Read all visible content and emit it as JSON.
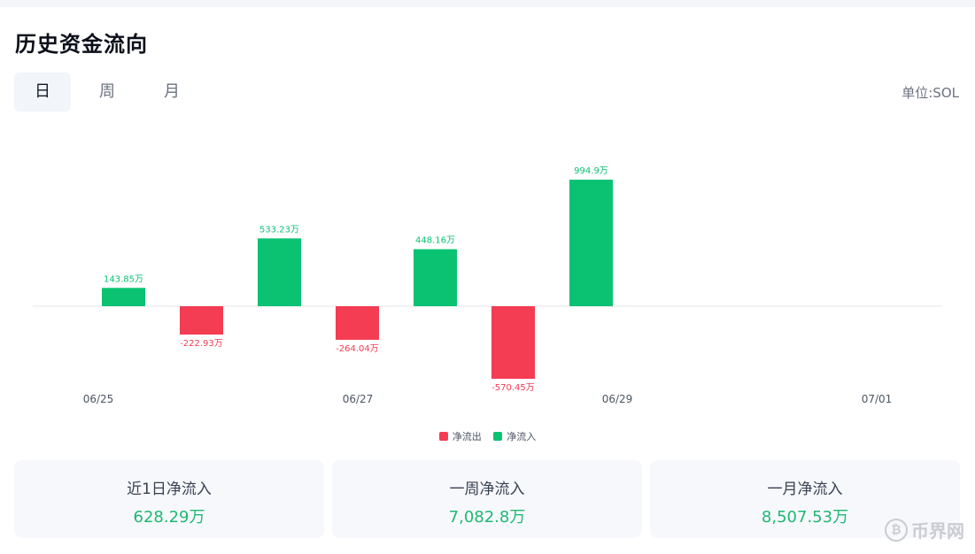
{
  "header": {
    "title": "历史资金流向",
    "unit": "单位:SOL"
  },
  "tabs": [
    {
      "label": "日",
      "active": true
    },
    {
      "label": "周",
      "active": false
    },
    {
      "label": "月",
      "active": false
    }
  ],
  "colors": {
    "inflow": "#0bc273",
    "outflow": "#f43c53",
    "accent_green": "#1fb872"
  },
  "chart_data": {
    "type": "bar",
    "unit": "万",
    "x_tick_labels": [
      "06/25",
      "06/27",
      "06/29",
      "07/01"
    ],
    "bars": [
      {
        "series": "净流入",
        "value": 143.85,
        "label": "143.85万"
      },
      {
        "series": "净流出",
        "value": -222.93,
        "label": "-222.93万"
      },
      {
        "series": "净流入",
        "value": 533.23,
        "label": "533.23万"
      },
      {
        "series": "净流出",
        "value": -264.04,
        "label": "-264.04万"
      },
      {
        "series": "净流入",
        "value": 448.16,
        "label": "448.16万"
      },
      {
        "series": "净流出",
        "value": -570.45,
        "label": "-570.45万"
      },
      {
        "series": "净流入",
        "value": 994.9,
        "label": "994.9万"
      }
    ],
    "legend": [
      {
        "name": "净流出",
        "color": "#f43c53"
      },
      {
        "name": "净流入",
        "color": "#0bc273"
      }
    ],
    "ylim": [
      -620,
      1000
    ]
  },
  "summary": [
    {
      "label": "近1日净流入",
      "value": "628.29万"
    },
    {
      "label": "一周净流入",
      "value": "7,082.8万"
    },
    {
      "label": "一月净流入",
      "value": "8,507.53万"
    }
  ],
  "watermark": {
    "text": "币界网",
    "icon": "bitcoin-icon",
    "icon_glyph": "₿"
  }
}
